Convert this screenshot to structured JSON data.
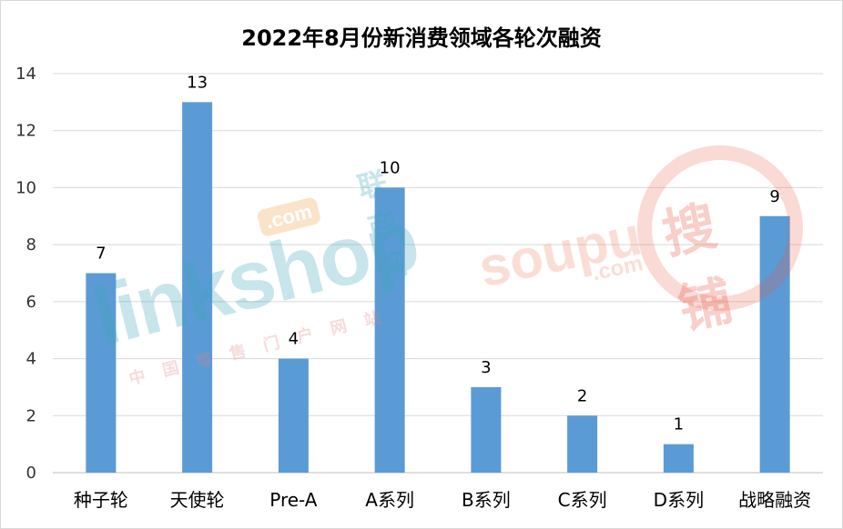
{
  "chart_data": {
    "type": "bar",
    "title": "2022年8月份新消费领域各轮次融资",
    "categories": [
      "种子轮",
      "天使轮",
      "Pre-A",
      "A系列",
      "B系列",
      "C系列",
      "D系列",
      "战略融资"
    ],
    "values": [
      7,
      13,
      4,
      10,
      3,
      2,
      1,
      9
    ],
    "ylim": [
      0,
      14
    ],
    "yticks": [
      0,
      2,
      4,
      6,
      8,
      10,
      12,
      14
    ],
    "grid": true,
    "bar_color": "#5b9bd5",
    "data_labels": true
  },
  "watermarks": {
    "linkshop_logo": "linkshop",
    "linkshop_com": ".com",
    "linkshop_cn": "联商网",
    "linkshop_slogan": "中国零售门户网站",
    "soupu_logo": "soupu",
    "soupu_cn": "搜铺",
    "soupu_com": ".com"
  }
}
